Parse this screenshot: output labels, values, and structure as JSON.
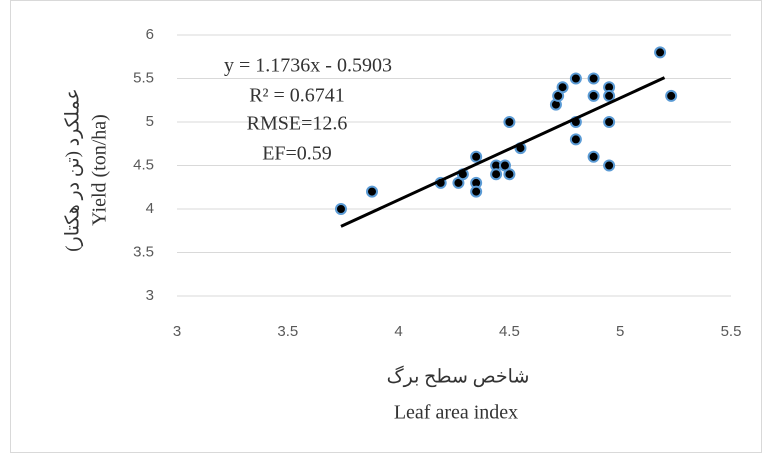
{
  "chart_data": {
    "type": "scatter",
    "annotations": [
      "y = 1.1736x - 0.5903",
      "R² = 0.6741",
      "RMSE=12.6",
      "EF=0.59"
    ],
    "ylabel": [
      "عملکرد (تن در هکتار)",
      "Yield (ton/ha)"
    ],
    "xlabel": [
      "شاخص سطح برگ",
      "Leaf area index"
    ],
    "x": [
      3.74,
      3.88,
      4.19,
      4.27,
      4.29,
      4.35,
      4.35,
      4.35,
      4.44,
      4.44,
      4.48,
      4.5,
      4.5,
      4.55,
      4.71,
      4.72,
      4.74,
      4.8,
      4.8,
      4.8,
      4.88,
      4.88,
      4.88,
      4.95,
      4.95,
      4.95,
      4.95,
      5.23,
      5.18
    ],
    "y": [
      4.0,
      4.2,
      4.3,
      4.3,
      4.4,
      4.6,
      4.3,
      4.2,
      4.5,
      4.4,
      4.5,
      4.4,
      5.0,
      4.7,
      5.2,
      5.3,
      5.4,
      5.5,
      5.0,
      4.8,
      5.5,
      5.3,
      4.6,
      5.4,
      5.3,
      5.0,
      4.5,
      5.3,
      5.8
    ],
    "color": "#000000",
    "edgecolor": "#5b9bd5",
    "trendline": {
      "x": [
        3.74,
        5.2
      ],
      "y": [
        3.8,
        5.51
      ],
      "color": "#000000"
    },
    "xlim": [
      3,
      5.5
    ],
    "xticks": [
      3,
      3.5,
      4,
      4.5,
      5,
      5.5
    ],
    "ylim": [
      3,
      6
    ],
    "yticks": [
      3,
      3.5,
      4,
      4.5,
      5,
      5.5,
      6
    ],
    "grid": true
  }
}
